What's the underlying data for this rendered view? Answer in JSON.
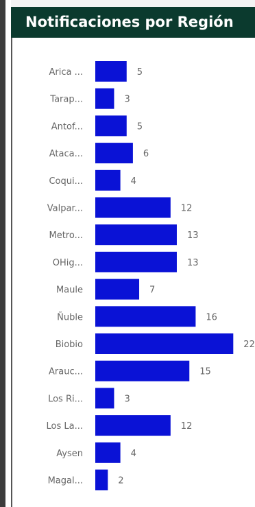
{
  "title": "Notificaciones por Región",
  "colors": {
    "bar": "#0a12d6",
    "header_bg": "#0b3a2e",
    "label": "#666666"
  },
  "chart_data": {
    "type": "bar",
    "orientation": "horizontal",
    "title": "Notificaciones por Región",
    "xlabel": "",
    "ylabel": "",
    "xlim": [
      0,
      22
    ],
    "grid": false,
    "categories": [
      "Arica ...",
      "Tarap...",
      "Antof...",
      "Ataca...",
      "Coqui...",
      "Valpar...",
      "Metro...",
      "OHig...",
      "Maule",
      "Ñuble",
      "Biobio",
      "Arauc...",
      "Los Ri...",
      "Los La...",
      "Aysen",
      "Magal..."
    ],
    "values": [
      5,
      3,
      5,
      6,
      4,
      12,
      13,
      13,
      7,
      16,
      22,
      15,
      3,
      12,
      4,
      2
    ],
    "data_labels": true
  }
}
